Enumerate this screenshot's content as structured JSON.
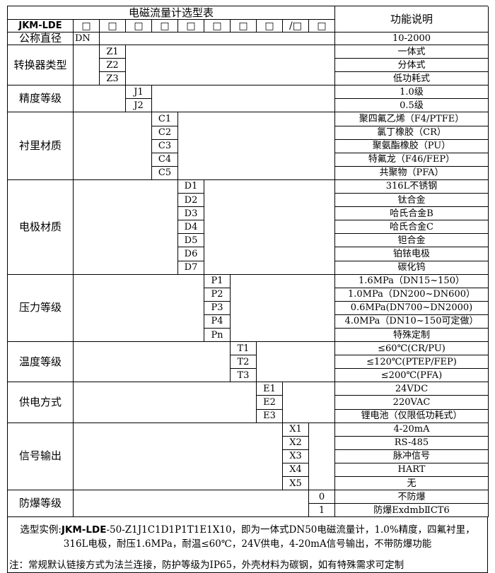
{
  "title": "电磁流量计选型表",
  "function_header": "功能说明",
  "model_prefix": "JKM-LDE",
  "code_boxes": [
    "□",
    "□",
    "□",
    "□",
    "□",
    "□",
    "□",
    "□",
    "/□",
    "□"
  ],
  "groups": [
    {
      "label": "公称直径",
      "col": 2,
      "options": [
        {
          "code": "DN",
          "desc": "10-2000"
        }
      ]
    },
    {
      "label": "转换器类型",
      "col": 3,
      "options": [
        {
          "code": "Z1",
          "desc": "一体式"
        },
        {
          "code": "Z2",
          "desc": "分体式"
        },
        {
          "code": "Z3",
          "desc": "低功耗式"
        }
      ]
    },
    {
      "label": "精度等级",
      "col": 4,
      "options": [
        {
          "code": "J1",
          "desc": "1.0级"
        },
        {
          "code": "J2",
          "desc": "0.5级"
        }
      ]
    },
    {
      "label": "衬里材质",
      "col": 5,
      "options": [
        {
          "code": "C1",
          "desc": "聚四氟乙烯（F4/PTFE）"
        },
        {
          "code": "C2",
          "desc": "氯丁橡胶（CR）"
        },
        {
          "code": "C3",
          "desc": "聚氨酯橡胶（PU）"
        },
        {
          "code": "C4",
          "desc": "特氟龙（F46/FEP）"
        },
        {
          "code": "C5",
          "desc": "共聚物（PFA）"
        }
      ]
    },
    {
      "label": "电极材质",
      "col": 6,
      "options": [
        {
          "code": "D1",
          "desc": "316L不锈钢"
        },
        {
          "code": "D2",
          "desc": "钛合金"
        },
        {
          "code": "D3",
          "desc": "哈氏合金B"
        },
        {
          "code": "D4",
          "desc": "哈氏合金C"
        },
        {
          "code": "D5",
          "desc": "钽合金"
        },
        {
          "code": "D6",
          "desc": "铂铱电极"
        },
        {
          "code": "D7",
          "desc": "碳化钨"
        }
      ]
    },
    {
      "label": "压力等级",
      "col": 7,
      "options": [
        {
          "code": "P1",
          "desc": "1.6MPa（DN15~150）"
        },
        {
          "code": "P2",
          "desc": "1.0MPa（DN200~DN600）"
        },
        {
          "code": "P3",
          "desc": "0.6MPa(DN700~DN2000)"
        },
        {
          "code": "P4",
          "desc": "4.0MPa（DN10~150可定做）"
        },
        {
          "code": "Pn",
          "desc": "特殊定制"
        }
      ]
    },
    {
      "label": "温度等级",
      "col": 8,
      "options": [
        {
          "code": "T1",
          "desc": "≤60℃(CR/PU)"
        },
        {
          "code": "T2",
          "desc": "≤120℃(PTEP/FEP)"
        },
        {
          "code": "T3",
          "desc": "≤200℃(PFA)"
        }
      ]
    },
    {
      "label": "供电方式",
      "col": 9,
      "options": [
        {
          "code": "E1",
          "desc": "24VDC"
        },
        {
          "code": "E2",
          "desc": "220VAC"
        },
        {
          "code": "E3",
          "desc": "锂电池（仅限低功耗式）"
        }
      ]
    },
    {
      "label": "信号输出",
      "col": 10,
      "options": [
        {
          "code": "X1",
          "desc": "4-20mA"
        },
        {
          "code": "X2",
          "desc": "RS-485"
        },
        {
          "code": "X3",
          "desc": "脉冲信号"
        },
        {
          "code": "X4",
          "desc": "HART"
        },
        {
          "code": "X5",
          "desc": "无"
        }
      ]
    },
    {
      "label": "防爆等级",
      "col": 11,
      "options": [
        {
          "code": "0",
          "desc": "不防爆"
        },
        {
          "code": "1",
          "desc": "防爆ExdmbⅡCT6"
        }
      ]
    }
  ],
  "footer": {
    "example_label": "选型实例:",
    "example_model": "JKM-LDE",
    "example_line1": "-50-Z1J1C1D1P1T1E1X10，即为一体式DN50电磁流量计，1.0%精度，四氟衬里，",
    "example_line2": "316L电极，耐压1.6MPa，耐温≤60℃，24V供电，4-20mA信号输出，不带防爆功能",
    "note": "注：常规默认链接方式为法兰连接，防护等级为IP65，外壳材料为碳钢，如有特殊需求可定制"
  }
}
